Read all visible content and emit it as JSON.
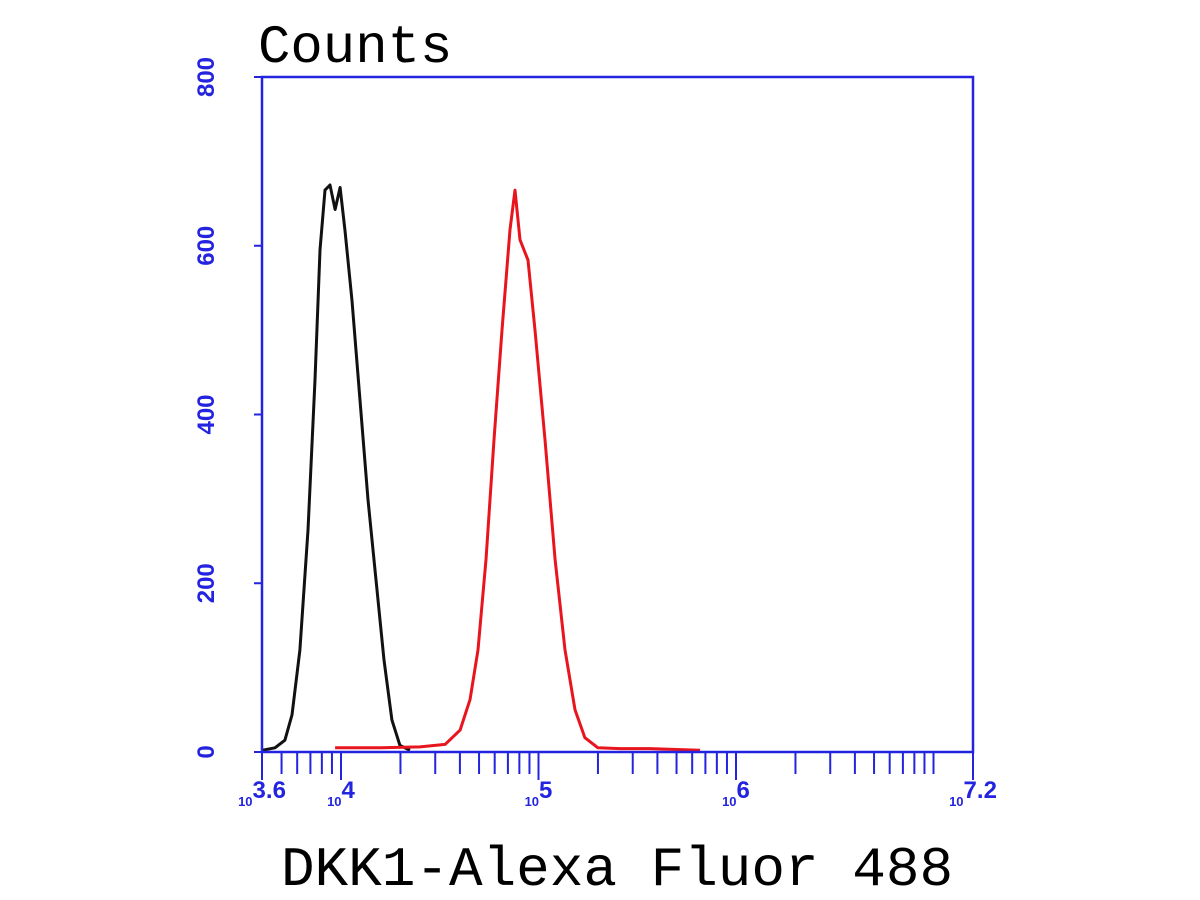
{
  "chart_data": {
    "type": "line",
    "title": "Counts",
    "xlabel": "DKK1-Alexa Fluor 488",
    "xscale": "log",
    "xlim": [
      3981,
      15849000
    ],
    "ylim": [
      0,
      800
    ],
    "yticks": [
      0,
      200,
      400,
      600,
      800
    ],
    "xticks": [
      {
        "value": 3981,
        "label": "10",
        "sup": "3.6"
      },
      {
        "value": 10000,
        "label": "10",
        "sup": "4"
      },
      {
        "value": 100000,
        "label": "10",
        "sup": "5"
      },
      {
        "value": 1000000,
        "label": "10",
        "sup": "6"
      },
      {
        "value": 15849000,
        "label": "10",
        "sup": "7.2"
      }
    ],
    "xticks_minor": [
      5000,
      6000,
      7000,
      8000,
      9000,
      20000,
      30000,
      40000,
      50000,
      60000,
      70000,
      80000,
      90000,
      200000,
      300000,
      400000,
      500000,
      600000,
      700000,
      800000,
      900000,
      2000000,
      3000000,
      4000000,
      5000000,
      6000000,
      7000000,
      8000000,
      9000000,
      10000000
    ],
    "axis_color": "#2323e0",
    "series": [
      {
        "color": "#111111",
        "x": [
          3981,
          4634,
          5200,
          5647,
          6194,
          6804,
          7385,
          7830,
          8300,
          8800,
          9330,
          9890,
          10480,
          11370,
          12480,
          13700,
          15040,
          16500,
          18110,
          19880,
          22340
        ],
        "values": [
          2,
          5,
          14,
          44,
          121,
          263,
          441,
          595,
          666,
          672,
          643,
          669,
          618,
          535,
          417,
          299,
          204,
          109,
          38,
          8,
          2
        ]
      },
      {
        "color": "#e8141e",
        "x": [
          9330,
          15750,
          25120,
          33650,
          40090,
          44990,
          49390,
          54200,
          59540,
          65360,
          71760,
          76050,
          80610,
          88460,
          95980,
          107900,
          121300,
          136200,
          153100,
          171800,
          199900,
          258600,
          367300,
          657700
        ],
        "values": [
          5,
          5,
          6,
          9,
          26,
          62,
          121,
          228,
          370,
          500,
          619,
          666,
          607,
          583,
          500,
          370,
          228,
          121,
          50,
          17,
          5,
          4,
          4,
          2
        ]
      }
    ]
  }
}
